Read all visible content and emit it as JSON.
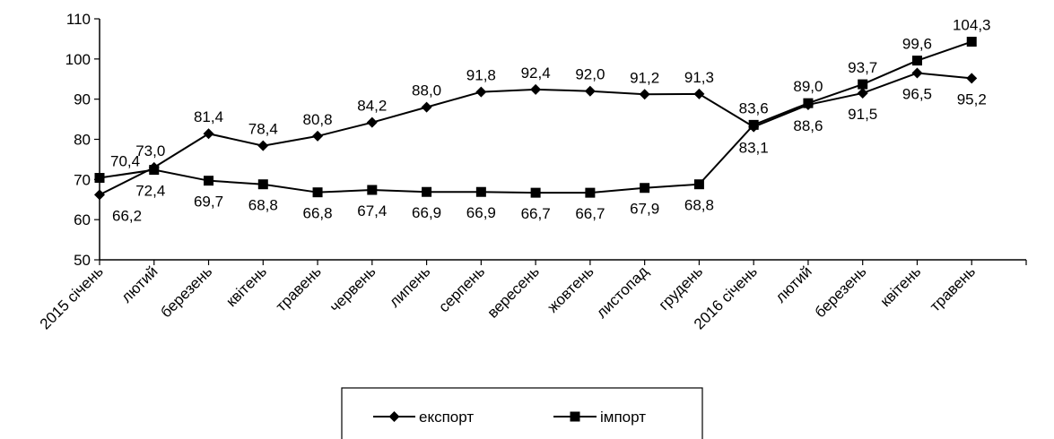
{
  "chart_data": {
    "type": "line",
    "title": "",
    "xlabel": "",
    "ylabel": "",
    "ylim": [
      50,
      110
    ],
    "yticks": [
      50,
      60,
      70,
      80,
      90,
      100,
      110
    ],
    "grid": false,
    "legend_position": "bottom",
    "categories": [
      "2015 січень",
      "лютий",
      "березень",
      "квітень",
      "травень",
      "червень",
      "липень",
      "серпень",
      "вересень",
      "жовтень",
      "листопад",
      "грудень",
      "2016 січень",
      "лютий",
      "березень",
      "квітень",
      "травень"
    ],
    "series": [
      {
        "name": "експорт",
        "marker": "diamond",
        "color": "#000000",
        "values": [
          66.2,
          73.0,
          81.4,
          78.4,
          80.8,
          84.2,
          88.0,
          91.8,
          92.4,
          92.0,
          91.2,
          91.3,
          83.1,
          88.6,
          91.5,
          96.5,
          95.2
        ],
        "labels": [
          "66,2",
          "73,0",
          "81,4",
          "78,4",
          "80,8",
          "84,2",
          "88,0",
          "91,8",
          "92,4",
          "92,0",
          "91,2",
          "91,3",
          "83,1",
          "88,6",
          "91,5",
          "96,5",
          "95,2"
        ]
      },
      {
        "name": "імпорт",
        "marker": "square",
        "color": "#000000",
        "values": [
          70.4,
          72.4,
          69.7,
          68.8,
          66.8,
          67.4,
          66.9,
          66.9,
          66.7,
          66.7,
          67.9,
          68.8,
          83.6,
          89.0,
          93.7,
          99.6,
          104.3
        ],
        "labels": [
          "70,4",
          "72,4",
          "69,7",
          "68,8",
          "66,8",
          "67,4",
          "66,9",
          "66,9",
          "66,7",
          "66,7",
          "67,9",
          "68,8",
          "83,6",
          "89,0",
          "93,7",
          "99,6",
          "104,3"
        ]
      }
    ]
  }
}
